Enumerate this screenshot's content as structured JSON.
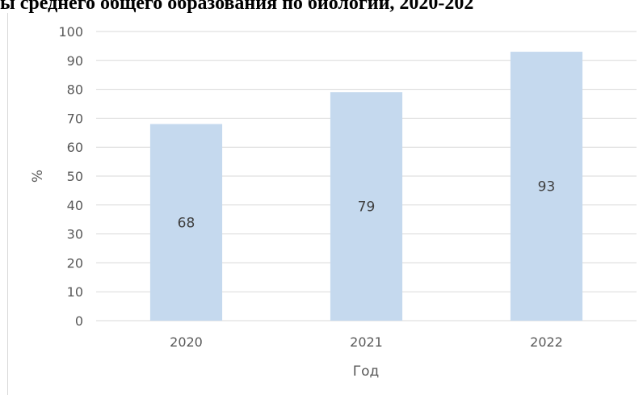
{
  "title": "ы среднего общего образования по биологии, 2020-202",
  "colors": {
    "bar": "#c5d9ee",
    "grid": "#d9d9d9",
    "text": "#595959",
    "label": "#404040"
  },
  "chart_data": {
    "type": "bar",
    "categories": [
      "2020",
      "2021",
      "2022"
    ],
    "values": [
      68,
      79,
      93
    ],
    "data_labels": [
      "68",
      "79",
      "93"
    ],
    "xlabel": "Год",
    "ylabel": "%",
    "ylim": [
      0,
      100
    ],
    "yticks": [
      "0",
      "10",
      "20",
      "30",
      "40",
      "50",
      "60",
      "70",
      "80",
      "90",
      "100"
    ],
    "grid": true
  }
}
